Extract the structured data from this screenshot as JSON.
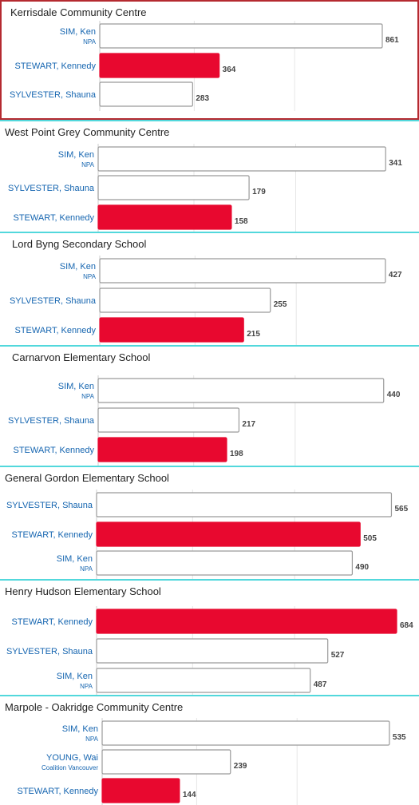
{
  "colors": {
    "highlight": "#e8082f",
    "bar_fill": "#ffffff",
    "bar_stroke": "#9a9a9a",
    "separator": "#52d8dc",
    "selected_border": "#b52a30",
    "label_text": "#1565b0"
  },
  "chart_data": [
    {
      "type": "bar",
      "orientation": "horizontal",
      "title": "Kerrisdale Community Centre",
      "selected": true,
      "xlim": [
        0,
        900
      ],
      "series": [
        {
          "name": "SIM, Ken",
          "party": "NPA",
          "value": 861,
          "highlight": false
        },
        {
          "name": "STEWART, Kennedy",
          "party": "",
          "value": 364,
          "highlight": true
        },
        {
          "name": "SYLVESTER, Shauna",
          "party": "",
          "value": 283,
          "highlight": false
        }
      ]
    },
    {
      "type": "bar",
      "orientation": "horizontal",
      "title": "West Point Grey Community Centre",
      "selected": false,
      "xlim": [
        0,
        355
      ],
      "series": [
        {
          "name": "SIM, Ken",
          "party": "NPA",
          "value": 341,
          "highlight": false
        },
        {
          "name": "SYLVESTER, Shauna",
          "party": "",
          "value": 179,
          "highlight": false
        },
        {
          "name": "STEWART, Kennedy",
          "party": "",
          "value": 158,
          "highlight": true
        }
      ]
    },
    {
      "type": "bar",
      "orientation": "horizontal",
      "title": "Lord Byng Secondary School",
      "selected": false,
      "xlim": [
        0,
        445
      ],
      "series": [
        {
          "name": "SIM, Ken",
          "party": "NPA",
          "value": 427,
          "highlight": false
        },
        {
          "name": "SYLVESTER, Shauna",
          "party": "",
          "value": 255,
          "highlight": false
        },
        {
          "name": "STEWART, Kennedy",
          "party": "",
          "value": 215,
          "highlight": true
        }
      ]
    },
    {
      "type": "bar",
      "orientation": "horizontal",
      "title": "Carnarvon Elementary School",
      "selected": false,
      "xlim": [
        0,
        460
      ],
      "series": [
        {
          "name": "SIM, Ken",
          "party": "NPA",
          "value": 440,
          "highlight": false
        },
        {
          "name": "SYLVESTER, Shauna",
          "party": "",
          "value": 217,
          "highlight": false
        },
        {
          "name": "STEWART, Kennedy",
          "party": "",
          "value": 198,
          "highlight": true
        }
      ]
    },
    {
      "type": "bar",
      "orientation": "horizontal",
      "title": "General Gordon Elementary School",
      "selected": false,
      "xlim": [
        0,
        575
      ],
      "series": [
        {
          "name": "SYLVESTER, Shauna",
          "party": "",
          "value": 565,
          "highlight": false
        },
        {
          "name": "STEWART, Kennedy",
          "party": "",
          "value": 505,
          "highlight": true
        },
        {
          "name": "SIM, Ken",
          "party": "NPA",
          "value": 490,
          "highlight": false
        }
      ]
    },
    {
      "type": "bar",
      "orientation": "horizontal",
      "title": "Henry Hudson Elementary School",
      "selected": false,
      "xlim": [
        0,
        684
      ],
      "series": [
        {
          "name": "STEWART, Kennedy",
          "party": "",
          "value": 684,
          "highlight": true
        },
        {
          "name": "SYLVESTER, Shauna",
          "party": "",
          "value": 527,
          "highlight": false
        },
        {
          "name": "SIM, Ken",
          "party": "NPA",
          "value": 487,
          "highlight": false
        }
      ]
    },
    {
      "type": "bar",
      "orientation": "horizontal",
      "title": "Marpole - Oakridge Community Centre",
      "selected": false,
      "xlim": [
        0,
        550
      ],
      "series": [
        {
          "name": "SIM, Ken",
          "party": "NPA",
          "value": 535,
          "highlight": false
        },
        {
          "name": "YOUNG, Wai",
          "party": "Coalition Vancouver",
          "value": 239,
          "highlight": false
        },
        {
          "name": "STEWART, Kennedy",
          "party": "",
          "value": 144,
          "highlight": true
        }
      ]
    }
  ]
}
